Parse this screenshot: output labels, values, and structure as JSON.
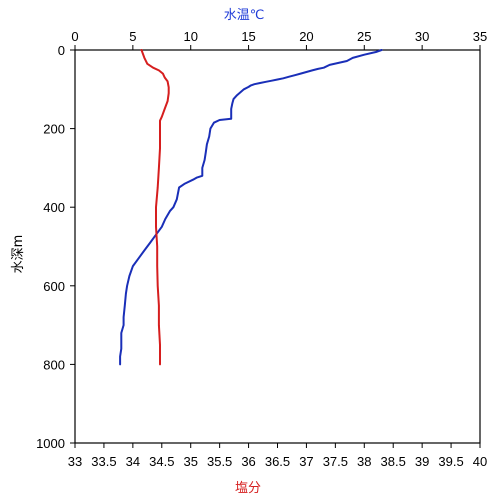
{
  "chart_data": {
    "type": "line",
    "title": "",
    "y_axis": {
      "label": "水深m",
      "range": [
        0,
        1000
      ],
      "reversed": true,
      "ticks": [
        0,
        200,
        400,
        600,
        800,
        1000
      ]
    },
    "x_top": {
      "label": "水温℃",
      "label_color": "#1f3bd8",
      "range": [
        0,
        35
      ],
      "ticks": [
        0,
        5,
        10,
        15,
        20,
        25,
        30,
        35
      ]
    },
    "x_bottom": {
      "label": "塩分",
      "label_color": "#d62020",
      "range": [
        33,
        40
      ],
      "ticks": [
        33,
        33.5,
        34,
        34.5,
        35,
        35.5,
        36,
        36.5,
        37,
        37.5,
        38,
        38.5,
        39,
        39.5,
        40
      ]
    },
    "grid": false,
    "series": [
      {
        "axis": "x_top",
        "color": "#1a2fb8",
        "points": [
          [
            26.5,
            0
          ],
          [
            26.0,
            5
          ],
          [
            25.0,
            12
          ],
          [
            24.0,
            20
          ],
          [
            23.5,
            28
          ],
          [
            22.0,
            38
          ],
          [
            21.5,
            45
          ],
          [
            21.0,
            48
          ],
          [
            20.5,
            52
          ],
          [
            20.0,
            56
          ],
          [
            19.5,
            60
          ],
          [
            19.0,
            64
          ],
          [
            18.5,
            68
          ],
          [
            18.0,
            72
          ],
          [
            17.5,
            75
          ],
          [
            17.0,
            78
          ],
          [
            16.5,
            81
          ],
          [
            16.0,
            84
          ],
          [
            15.5,
            87
          ],
          [
            15.2,
            90
          ],
          [
            15.0,
            94
          ],
          [
            14.6,
            100
          ],
          [
            14.0,
            115
          ],
          [
            13.7,
            125
          ],
          [
            13.6,
            135
          ],
          [
            13.5,
            150
          ],
          [
            13.5,
            175
          ],
          [
            12.5,
            178
          ],
          [
            12.0,
            185
          ],
          [
            11.7,
            200
          ],
          [
            11.6,
            220
          ],
          [
            11.4,
            240
          ],
          [
            11.3,
            260
          ],
          [
            11.2,
            280
          ],
          [
            11.0,
            300
          ],
          [
            11.0,
            320
          ],
          [
            10.5,
            325
          ],
          [
            10.2,
            330
          ],
          [
            9.5,
            340
          ],
          [
            9.0,
            350
          ],
          [
            8.8,
            380
          ],
          [
            8.5,
            400
          ],
          [
            8.2,
            410
          ],
          [
            7.8,
            430
          ],
          [
            7.5,
            450
          ],
          [
            7.0,
            470
          ],
          [
            6.5,
            490
          ],
          [
            6.0,
            510
          ],
          [
            5.5,
            530
          ],
          [
            5.0,
            550
          ],
          [
            4.7,
            575
          ],
          [
            4.5,
            600
          ],
          [
            4.4,
            620
          ],
          [
            4.3,
            650
          ],
          [
            4.2,
            680
          ],
          [
            4.2,
            700
          ],
          [
            4.0,
            720
          ],
          [
            4.0,
            760
          ],
          [
            3.9,
            780
          ],
          [
            3.9,
            800
          ]
        ]
      },
      {
        "axis": "x_bottom",
        "color": "#d61e1e",
        "points": [
          [
            34.15,
            0
          ],
          [
            34.2,
            20
          ],
          [
            34.25,
            35
          ],
          [
            34.35,
            45
          ],
          [
            34.45,
            52
          ],
          [
            34.52,
            60
          ],
          [
            34.55,
            70
          ],
          [
            34.6,
            80
          ],
          [
            34.62,
            95
          ],
          [
            34.62,
            110
          ],
          [
            34.6,
            130
          ],
          [
            34.55,
            150
          ],
          [
            34.5,
            170
          ],
          [
            34.47,
            180
          ],
          [
            34.47,
            200
          ],
          [
            34.47,
            250
          ],
          [
            34.45,
            300
          ],
          [
            34.43,
            350
          ],
          [
            34.4,
            400
          ],
          [
            34.4,
            450
          ],
          [
            34.42,
            500
          ],
          [
            34.42,
            550
          ],
          [
            34.43,
            600
          ],
          [
            34.45,
            650
          ],
          [
            34.45,
            700
          ],
          [
            34.47,
            750
          ],
          [
            34.47,
            800
          ]
        ]
      }
    ]
  }
}
